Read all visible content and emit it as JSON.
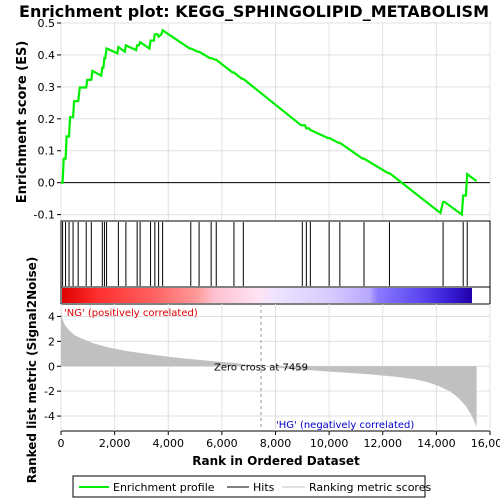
{
  "chart_data": {
    "type": "line",
    "title": "Enrichment plot: KEGG_SPHINGOLIPID_METABOLISM",
    "xlabel": "Rank in Ordered Dataset",
    "xlim": [
      0,
      16000
    ],
    "x_ticks": [
      "0",
      "2,000",
      "4,000",
      "6,000",
      "8,000",
      "10,000",
      "12,000",
      "14,000",
      "16,000"
    ],
    "x_tick_values": [
      0,
      2000,
      4000,
      6000,
      8000,
      10000,
      12000,
      14000,
      16000
    ],
    "es_panel": {
      "ylabel": "Enrichment score (ES)",
      "ylim": [
        -0.12,
        0.5
      ],
      "y_ticks": [
        "-0.1",
        "0.0",
        "0.1",
        "0.2",
        "0.3",
        "0.4",
        "0.5"
      ],
      "y_tick_values": [
        -0.1,
        0.0,
        0.1,
        0.2,
        0.3,
        0.4,
        0.5
      ],
      "series": [
        {
          "name": "Enrichment profile",
          "color": "#00ee00",
          "x": [
            0,
            60,
            100,
            170,
            210,
            300,
            340,
            450,
            490,
            640,
            700,
            940,
            980,
            1130,
            1170,
            1500,
            1540,
            1580,
            1620,
            1650,
            1700,
            2100,
            2140,
            2380,
            2420,
            2800,
            2840,
            2900,
            2950,
            3300,
            3340,
            3460,
            3500,
            3600,
            3640,
            3750,
            3790,
            4800,
            4840,
            5100,
            5150,
            5550,
            5600,
            5750,
            5790,
            6400,
            6450,
            6750,
            6800,
            8950,
            9000,
            9100,
            9150,
            9250,
            9300,
            9950,
            10000,
            10350,
            10400,
            11250,
            11300,
            12200,
            12250,
            14150,
            14250,
            14300,
            14950,
            15000,
            15100,
            15150,
            15500
          ],
          "y": [
            0.0,
            0.0,
            0.075,
            0.075,
            0.145,
            0.145,
            0.205,
            0.205,
            0.255,
            0.255,
            0.298,
            0.298,
            0.322,
            0.322,
            0.35,
            0.335,
            0.36,
            0.36,
            0.39,
            0.39,
            0.42,
            0.405,
            0.425,
            0.41,
            0.43,
            0.415,
            0.43,
            0.43,
            0.44,
            0.42,
            0.445,
            0.445,
            0.465,
            0.465,
            0.457,
            0.465,
            0.477,
            0.42,
            0.42,
            0.41,
            0.41,
            0.39,
            0.39,
            0.385,
            0.385,
            0.345,
            0.345,
            0.325,
            0.325,
            0.18,
            0.18,
            0.18,
            0.17,
            0.17,
            0.165,
            0.14,
            0.14,
            0.125,
            0.125,
            0.075,
            0.075,
            0.03,
            0.03,
            -0.095,
            -0.06,
            -0.06,
            -0.1,
            -0.04,
            -0.04,
            0.027,
            0.005
          ]
        }
      ]
    },
    "hits_panel": {
      "hit_positions": [
        60,
        170,
        300,
        450,
        640,
        940,
        1130,
        1540,
        1620,
        1700,
        2140,
        2420,
        2840,
        2950,
        3340,
        3500,
        3640,
        3790,
        4840,
        5150,
        5600,
        5790,
        6450,
        6800,
        9000,
        9150,
        9300,
        10000,
        10400,
        11300,
        12250,
        14250,
        15000,
        15150
      ]
    },
    "ranked_metric_panel": {
      "ylabel": "Ranked list metric (Signal2Noise)",
      "ylim": [
        -5.2,
        5.0
      ],
      "y_ticks": [
        "-4",
        "-2",
        "0",
        "2",
        "4"
      ],
      "y_tick_values": [
        -4,
        -2,
        0,
        2,
        4
      ],
      "zero_cross_label": "Zero cross at 7459",
      "zero_cross_rank": 7459,
      "pos_label": "'NG' (positively correlated)",
      "neg_label": "'HG' (negatively correlated)",
      "metric_x": [
        0,
        50,
        150,
        300,
        500,
        800,
        1200,
        1800,
        2500,
        3500,
        4500,
        5500,
        6500,
        7459,
        8500,
        9500,
        10500,
        11500,
        12500,
        13200,
        13700,
        14100,
        14500,
        14800,
        15100,
        15300,
        15450,
        15500
      ],
      "metric_y": [
        4.5,
        3.8,
        3.3,
        2.9,
        2.5,
        2.2,
        1.85,
        1.5,
        1.2,
        0.9,
        0.65,
        0.45,
        0.25,
        0.0,
        -0.2,
        -0.35,
        -0.5,
        -0.65,
        -0.85,
        -1.05,
        -1.3,
        -1.6,
        -2.0,
        -2.5,
        -3.2,
        -3.9,
        -4.6,
        -4.9
      ],
      "fill_color": "#c0c0c0"
    },
    "legend": {
      "placement": "bottom",
      "entries": [
        {
          "label": "Enrichment profile",
          "color": "#00ee00"
        },
        {
          "label": "Hits",
          "color": "#000000"
        },
        {
          "label": "Ranking metric scores",
          "color": "#c0c0c0"
        }
      ]
    },
    "grid": true
  }
}
